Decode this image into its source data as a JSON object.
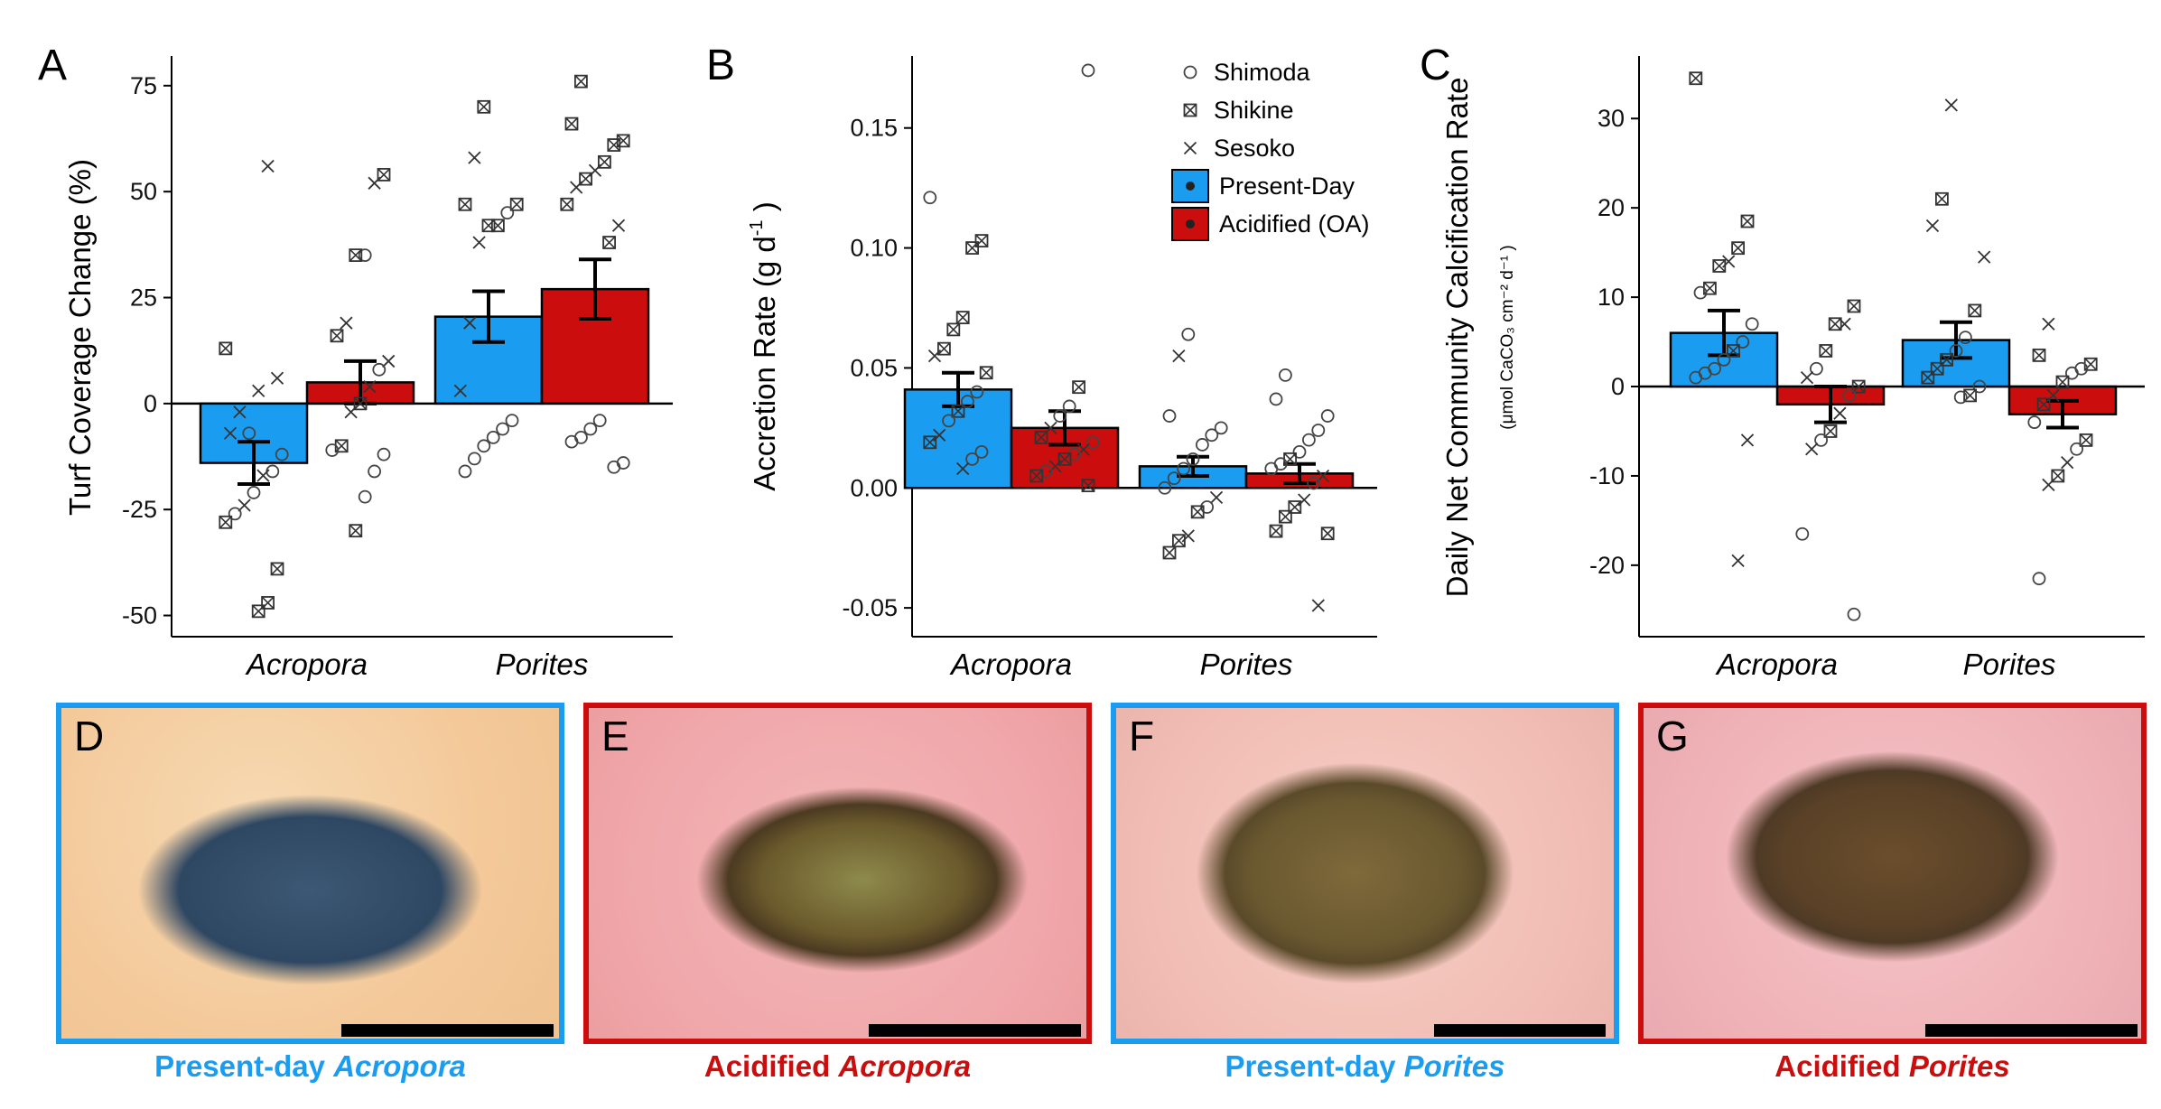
{
  "colors": {
    "present": "#1a9df0",
    "oa": "#cc0d0d"
  },
  "legend": {
    "sites": [
      "Shimoda",
      "Shikine",
      "Sesoko"
    ],
    "treatments": [
      "Present-Day",
      "Acidified (OA)"
    ]
  },
  "chart_data": [
    {
      "type": "bar",
      "panel": "A",
      "ylabel": "Turf Coverage Change (%)",
      "categories": [
        "Acropora",
        "Porites"
      ],
      "ylim": [
        -55,
        82
      ],
      "yticks": [
        -50,
        -25,
        0,
        25,
        50,
        75
      ],
      "series": [
        {
          "name": "Present-Day",
          "values": [
            -14,
            20.5
          ],
          "se": [
            5,
            6
          ]
        },
        {
          "name": "Acidified (OA)",
          "values": [
            5,
            27
          ],
          "se": [
            5,
            7
          ]
        }
      ],
      "points": [
        [
          [
            {
              "s": 1,
              "y": 13
            },
            {
              "s": 2,
              "y": 6
            },
            {
              "s": 2,
              "y": 56
            },
            {
              "s": 2,
              "y": 3
            },
            {
              "s": 0,
              "y": -7
            },
            {
              "s": 2,
              "y": -2
            },
            {
              "s": 2,
              "y": -7
            },
            {
              "s": 0,
              "y": -12
            },
            {
              "s": 0,
              "y": -16
            },
            {
              "s": 2,
              "y": -17
            },
            {
              "s": 0,
              "y": -21
            },
            {
              "s": 2,
              "y": -24
            },
            {
              "s": 0,
              "y": -26
            },
            {
              "s": 1,
              "y": -28
            },
            {
              "s": 1,
              "y": -39
            },
            {
              "s": 1,
              "y": -47
            },
            {
              "s": 1,
              "y": -49
            }
          ],
          [
            {
              "s": 1,
              "y": 54
            },
            {
              "s": 2,
              "y": 52
            },
            {
              "s": 0,
              "y": 35
            },
            {
              "s": 1,
              "y": 35
            },
            {
              "s": 2,
              "y": 19
            },
            {
              "s": 1,
              "y": 16
            },
            {
              "s": 2,
              "y": 10
            },
            {
              "s": 0,
              "y": 8
            },
            {
              "s": 2,
              "y": 4
            },
            {
              "s": 1,
              "y": 0
            },
            {
              "s": 2,
              "y": -2
            },
            {
              "s": 1,
              "y": -10
            },
            {
              "s": 0,
              "y": -11
            },
            {
              "s": 0,
              "y": -12
            },
            {
              "s": 0,
              "y": -16
            },
            {
              "s": 0,
              "y": -22
            },
            {
              "s": 1,
              "y": -30
            }
          ]
        ],
        [
          [
            {
              "s": 1,
              "y": 70
            },
            {
              "s": 2,
              "y": 58
            },
            {
              "s": 1,
              "y": 47
            },
            {
              "s": 1,
              "y": 47
            },
            {
              "s": 0,
              "y": 45
            },
            {
              "s": 1,
              "y": 42
            },
            {
              "s": 1,
              "y": 42
            },
            {
              "s": 2,
              "y": 38
            },
            {
              "s": 2,
              "y": 19
            },
            {
              "s": 2,
              "y": 3
            },
            {
              "s": 0,
              "y": -4
            },
            {
              "s": 0,
              "y": -6
            },
            {
              "s": 0,
              "y": -8
            },
            {
              "s": 0,
              "y": -10
            },
            {
              "s": 0,
              "y": -13
            },
            {
              "s": 0,
              "y": -16
            }
          ],
          [
            {
              "s": 1,
              "y": 76
            },
            {
              "s": 1,
              "y": 66
            },
            {
              "s": 1,
              "y": 62
            },
            {
              "s": 1,
              "y": 61
            },
            {
              "s": 1,
              "y": 57
            },
            {
              "s": 2,
              "y": 55
            },
            {
              "s": 1,
              "y": 53
            },
            {
              "s": 2,
              "y": 51
            },
            {
              "s": 1,
              "y": 47
            },
            {
              "s": 2,
              "y": 42
            },
            {
              "s": 1,
              "y": 38
            },
            {
              "s": 0,
              "y": -4
            },
            {
              "s": 0,
              "y": -6
            },
            {
              "s": 0,
              "y": -8
            },
            {
              "s": 0,
              "y": -9
            },
            {
              "s": 0,
              "y": -14
            },
            {
              "s": 0,
              "y": -15
            }
          ]
        ]
      ]
    },
    {
      "type": "bar",
      "panel": "B",
      "ylabel": "Accretion Rate (g d",
      "ylabel_sup": "-1",
      "ylabel_end": ")",
      "categories": [
        "Acropora",
        "Porites"
      ],
      "ylim": [
        -0.062,
        0.18
      ],
      "yticks": [
        -0.05,
        0.0,
        0.05,
        0.1,
        0.15
      ],
      "ytick_labels": [
        "-0.05",
        "0.00",
        "0.05",
        "0.10",
        "0.15"
      ],
      "series": [
        {
          "name": "Present-Day",
          "values": [
            0.041,
            0.009
          ],
          "se": [
            0.007,
            0.004
          ]
        },
        {
          "name": "Acidified (OA)",
          "values": [
            0.025,
            0.006
          ],
          "se": [
            0.007,
            0.004
          ]
        }
      ],
      "points": [
        [
          [
            {
              "s": 0,
              "y": 0.121
            },
            {
              "s": 1,
              "y": 0.103
            },
            {
              "s": 1,
              "y": 0.1
            },
            {
              "s": 1,
              "y": 0.071
            },
            {
              "s": 1,
              "y": 0.066
            },
            {
              "s": 1,
              "y": 0.058
            },
            {
              "s": 2,
              "y": 0.055
            },
            {
              "s": 1,
              "y": 0.048
            },
            {
              "s": 0,
              "y": 0.04
            },
            {
              "s": 0,
              "y": 0.036
            },
            {
              "s": 1,
              "y": 0.032
            },
            {
              "s": 0,
              "y": 0.028
            },
            {
              "s": 2,
              "y": 0.022
            },
            {
              "s": 1,
              "y": 0.019
            },
            {
              "s": 0,
              "y": 0.015
            },
            {
              "s": 0,
              "y": 0.012
            },
            {
              "s": 2,
              "y": 0.008
            }
          ],
          [
            {
              "s": 0,
              "y": 0.174
            },
            {
              "s": 1,
              "y": 0.042
            },
            {
              "s": 0,
              "y": 0.034
            },
            {
              "s": 0,
              "y": 0.03
            },
            {
              "s": 2,
              "y": 0.025
            },
            {
              "s": 1,
              "y": 0.021
            },
            {
              "s": 0,
              "y": 0.019
            },
            {
              "s": 2,
              "y": 0.016
            },
            {
              "s": 0,
              "y": 0.014
            },
            {
              "s": 1,
              "y": 0.012
            },
            {
              "s": 2,
              "y": 0.009
            },
            {
              "s": 0,
              "y": 0.007
            },
            {
              "s": 1,
              "y": 0.005
            },
            {
              "s": 1,
              "y": 0.001
            }
          ]
        ],
        [
          [
            {
              "s": 0,
              "y": 0.064
            },
            {
              "s": 2,
              "y": 0.055
            },
            {
              "s": 0,
              "y": 0.03
            },
            {
              "s": 0,
              "y": 0.025
            },
            {
              "s": 0,
              "y": 0.022
            },
            {
              "s": 0,
              "y": 0.018
            },
            {
              "s": 0,
              "y": 0.012
            },
            {
              "s": 0,
              "y": 0.008
            },
            {
              "s": 0,
              "y": 0.004
            },
            {
              "s": 0,
              "y": 0.0
            },
            {
              "s": 2,
              "y": -0.004
            },
            {
              "s": 0,
              "y": -0.008
            },
            {
              "s": 1,
              "y": -0.01
            },
            {
              "s": 2,
              "y": -0.02
            },
            {
              "s": 1,
              "y": -0.022
            },
            {
              "s": 1,
              "y": -0.027
            }
          ],
          [
            {
              "s": 0,
              "y": 0.047
            },
            {
              "s": 0,
              "y": 0.037
            },
            {
              "s": 0,
              "y": 0.03
            },
            {
              "s": 0,
              "y": 0.024
            },
            {
              "s": 0,
              "y": 0.02
            },
            {
              "s": 0,
              "y": 0.015
            },
            {
              "s": 1,
              "y": 0.012
            },
            {
              "s": 0,
              "y": 0.01
            },
            {
              "s": 0,
              "y": 0.008
            },
            {
              "s": 2,
              "y": 0.005
            },
            {
              "s": 0,
              "y": 0.002
            },
            {
              "s": 2,
              "y": -0.005
            },
            {
              "s": 1,
              "y": -0.008
            },
            {
              "s": 1,
              "y": -0.012
            },
            {
              "s": 1,
              "y": -0.018
            },
            {
              "s": 1,
              "y": -0.019
            },
            {
              "s": 2,
              "y": -0.049
            }
          ]
        ]
      ]
    },
    {
      "type": "bar",
      "panel": "C",
      "ylabel": "Daily Net Community Calcification Rate",
      "ylabel_units": "(μmol CaCO₃ cm⁻² d⁻¹ )",
      "categories": [
        "Acropora",
        "Porites"
      ],
      "ylim": [
        -28,
        37
      ],
      "yticks": [
        -20,
        -10,
        0,
        10,
        20,
        30
      ],
      "series": [
        {
          "name": "Present-Day",
          "values": [
            6,
            5.2
          ],
          "se": [
            2.5,
            2
          ]
        },
        {
          "name": "Acidified (OA)",
          "values": [
            -2,
            -3.1
          ],
          "se": [
            2,
            1.5
          ]
        }
      ],
      "points": [
        [
          [
            {
              "s": 1,
              "y": 34.5
            },
            {
              "s": 1,
              "y": 18.5
            },
            {
              "s": 1,
              "y": 15.5
            },
            {
              "s": 2,
              "y": 14
            },
            {
              "s": 1,
              "y": 13.5
            },
            {
              "s": 1,
              "y": 11
            },
            {
              "s": 0,
              "y": 10.5
            },
            {
              "s": 0,
              "y": 7
            },
            {
              "s": 0,
              "y": 5
            },
            {
              "s": 1,
              "y": 4
            },
            {
              "s": 0,
              "y": 3
            },
            {
              "s": 0,
              "y": 2
            },
            {
              "s": 0,
              "y": 1.5
            },
            {
              "s": 0,
              "y": 1
            },
            {
              "s": 2,
              "y": -6
            },
            {
              "s": 2,
              "y": -19.5
            }
          ],
          [
            {
              "s": 1,
              "y": 9
            },
            {
              "s": 2,
              "y": 7
            },
            {
              "s": 1,
              "y": 7
            },
            {
              "s": 1,
              "y": 4
            },
            {
              "s": 0,
              "y": 2
            },
            {
              "s": 2,
              "y": 1
            },
            {
              "s": 1,
              "y": 0
            },
            {
              "s": 0,
              "y": -1
            },
            {
              "s": 2,
              "y": -3
            },
            {
              "s": 1,
              "y": -5
            },
            {
              "s": 0,
              "y": -6
            },
            {
              "s": 2,
              "y": -7
            },
            {
              "s": 0,
              "y": -16.5
            },
            {
              "s": 0,
              "y": -25.5
            }
          ]
        ],
        [
          [
            {
              "s": 2,
              "y": 31.5
            },
            {
              "s": 1,
              "y": 21
            },
            {
              "s": 2,
              "y": 18
            },
            {
              "s": 2,
              "y": 14.5
            },
            {
              "s": 1,
              "y": 8.5
            },
            {
              "s": 0,
              "y": 5.5
            },
            {
              "s": 0,
              "y": 4
            },
            {
              "s": 1,
              "y": 3
            },
            {
              "s": 1,
              "y": 2
            },
            {
              "s": 1,
              "y": 1
            },
            {
              "s": 0,
              "y": 0
            },
            {
              "s": 1,
              "y": -1
            },
            {
              "s": 0,
              "y": -1.2
            }
          ],
          [
            {
              "s": 2,
              "y": 7
            },
            {
              "s": 1,
              "y": 3.5
            },
            {
              "s": 1,
              "y": 2.5
            },
            {
              "s": 0,
              "y": 2
            },
            {
              "s": 0,
              "y": 1.5
            },
            {
              "s": 1,
              "y": 0.5
            },
            {
              "s": 2,
              "y": -1
            },
            {
              "s": 1,
              "y": -2
            },
            {
              "s": 0,
              "y": -4
            },
            {
              "s": 1,
              "y": -6
            },
            {
              "s": 0,
              "y": -7
            },
            {
              "s": 2,
              "y": -8.5
            },
            {
              "s": 1,
              "y": -10
            },
            {
              "s": 2,
              "y": -11
            },
            {
              "s": 0,
              "y": -21.5
            }
          ]
        ]
      ]
    }
  ],
  "photos": [
    {
      "letter": "D",
      "treatment": "present",
      "caption_prefix": "Present-day ",
      "caption_genus": "Acropora"
    },
    {
      "letter": "E",
      "treatment": "oa",
      "caption_prefix": "Acidified ",
      "caption_genus": "Acropora"
    },
    {
      "letter": "F",
      "treatment": "present",
      "caption_prefix": "Present-day ",
      "caption_genus": "Porites"
    },
    {
      "letter": "G",
      "treatment": "oa",
      "caption_prefix": "Acidified ",
      "caption_genus": "Porites"
    }
  ]
}
